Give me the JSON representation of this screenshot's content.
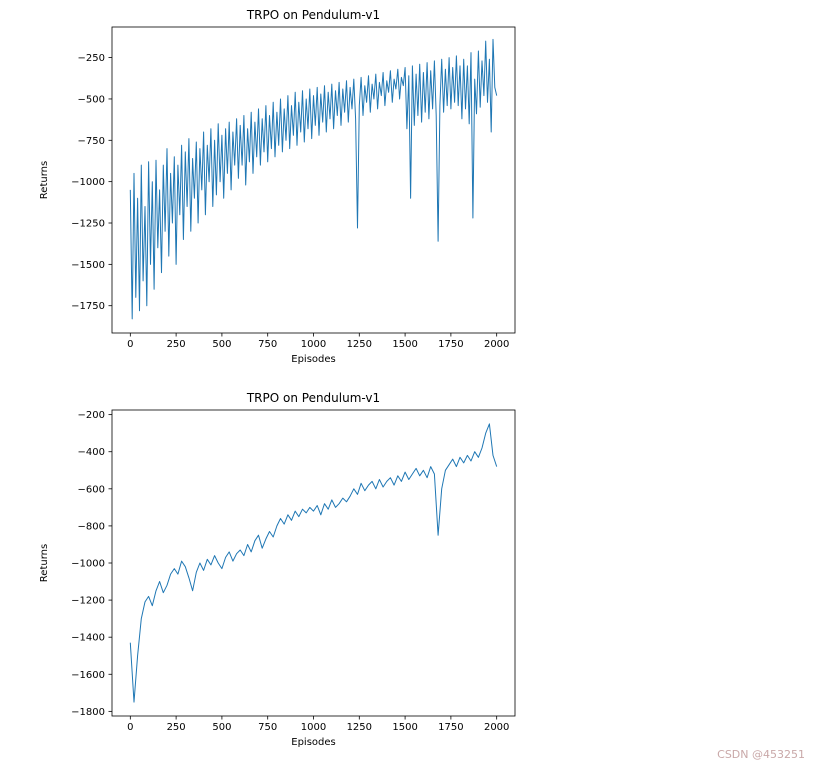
{
  "watermark": {
    "text": "CSDN @453251",
    "color": "#c9a8a8"
  },
  "charts": [
    {
      "id": "raw-returns",
      "type": "line",
      "title": "TRPO on Pendulum-v1",
      "xlabel": "Episodes",
      "ylabel": "Returns",
      "line_color": "#1f77b4",
      "grid": false,
      "legend": "none",
      "xlim": [
        -100,
        2100
      ],
      "ylim": [
        -1915,
        -65
      ],
      "xticks": [
        0,
        250,
        500,
        750,
        1000,
        1250,
        1500,
        1750,
        2000
      ],
      "yticks": [
        -250,
        -500,
        -750,
        -1000,
        -1250,
        -1500,
        -1750
      ],
      "x_start": 0,
      "x_step": 10,
      "y": [
        -1050,
        -1830,
        -950,
        -1700,
        -1100,
        -1780,
        -900,
        -1600,
        -1150,
        -1750,
        -880,
        -1500,
        -1000,
        -1650,
        -870,
        -1400,
        -1050,
        -1550,
        -900,
        -1300,
        -800,
        -1450,
        -950,
        -1250,
        -850,
        -1500,
        -900,
        -1200,
        -780,
        -1350,
        -820,
        -1150,
        -740,
        -1300,
        -860,
        -1100,
        -760,
        -1250,
        -800,
        -1050,
        -700,
        -1200,
        -780,
        -1000,
        -680,
        -1150,
        -750,
        -1080,
        -650,
        -1000,
        -720,
        -1100,
        -680,
        -950,
        -640,
        -1050,
        -700,
        -900,
        -620,
        -980,
        -660,
        -900,
        -600,
        -1020,
        -680,
        -880,
        -580,
        -950,
        -640,
        -850,
        -560,
        -900,
        -620,
        -820,
        -540,
        -880,
        -600,
        -800,
        -520,
        -850,
        -580,
        -780,
        -500,
        -820,
        -560,
        -750,
        -480,
        -800,
        -540,
        -720,
        -460,
        -780,
        -520,
        -700,
        -450,
        -760,
        -500,
        -680,
        -440,
        -740,
        -480,
        -660,
        -430,
        -720,
        -470,
        -640,
        -420,
        -700,
        -460,
        -620,
        -410,
        -680,
        -450,
        -600,
        -400,
        -660,
        -440,
        -580,
        -390,
        -640,
        -430,
        -560,
        -380,
        -620,
        -1280,
        -540,
        -370,
        -600,
        -420,
        -520,
        -360,
        -580,
        -410,
        -500,
        -350,
        -560,
        -400,
        -480,
        -340,
        -540,
        -390,
        -460,
        -330,
        -520,
        -380,
        -440,
        -320,
        -500,
        -370,
        -420,
        -310,
        -680,
        -360,
        -1100,
        -300,
        -660,
        -350,
        -600,
        -290,
        -640,
        -340,
        -580,
        -280,
        -620,
        -330,
        -560,
        -270,
        -600,
        -1360,
        -540,
        -260,
        -580,
        -320,
        -540,
        -250,
        -560,
        -310,
        -520,
        -240,
        -540,
        -300,
        -620,
        -260,
        -560,
        -300,
        -650,
        -220,
        -1220,
        -380,
        -590,
        -210,
        -550,
        -270,
        -480,
        -150,
        -520,
        -260,
        -700,
        -140,
        -430,
        -480
      ]
    },
    {
      "id": "smoothed-returns",
      "type": "line",
      "title": "TRPO on Pendulum-v1",
      "xlabel": "Episodes",
      "ylabel": "Returns",
      "line_color": "#1f77b4",
      "grid": false,
      "legend": "none",
      "xlim": [
        -100,
        2100
      ],
      "ylim": [
        -1825,
        -175
      ],
      "xticks": [
        0,
        250,
        500,
        750,
        1000,
        1250,
        1500,
        1750,
        2000
      ],
      "yticks": [
        -200,
        -400,
        -600,
        -800,
        -1000,
        -1200,
        -1400,
        -1600,
        -1800
      ],
      "x_start": 0,
      "x_step": 20,
      "y": [
        -1430,
        -1750,
        -1500,
        -1300,
        -1210,
        -1180,
        -1230,
        -1150,
        -1100,
        -1160,
        -1120,
        -1060,
        -1030,
        -1060,
        -990,
        -1020,
        -1080,
        -1150,
        -1050,
        -1000,
        -1040,
        -980,
        -1010,
        -960,
        -1000,
        -1030,
        -970,
        -940,
        -990,
        -950,
        -930,
        -960,
        -900,
        -940,
        -880,
        -850,
        -920,
        -870,
        -830,
        -860,
        -800,
        -760,
        -790,
        -740,
        -770,
        -720,
        -750,
        -710,
        -730,
        -700,
        -720,
        -690,
        -740,
        -680,
        -710,
        -660,
        -700,
        -680,
        -650,
        -670,
        -640,
        -600,
        -630,
        -570,
        -610,
        -580,
        -560,
        -600,
        -550,
        -590,
        -560,
        -540,
        -580,
        -530,
        -560,
        -510,
        -550,
        -520,
        -490,
        -530,
        -500,
        -540,
        -480,
        -520,
        -850,
        -600,
        -500,
        -470,
        -440,
        -480,
        -430,
        -460,
        -420,
        -450,
        -400,
        -430,
        -380,
        -300,
        -250,
        -420,
        -480
      ]
    }
  ]
}
